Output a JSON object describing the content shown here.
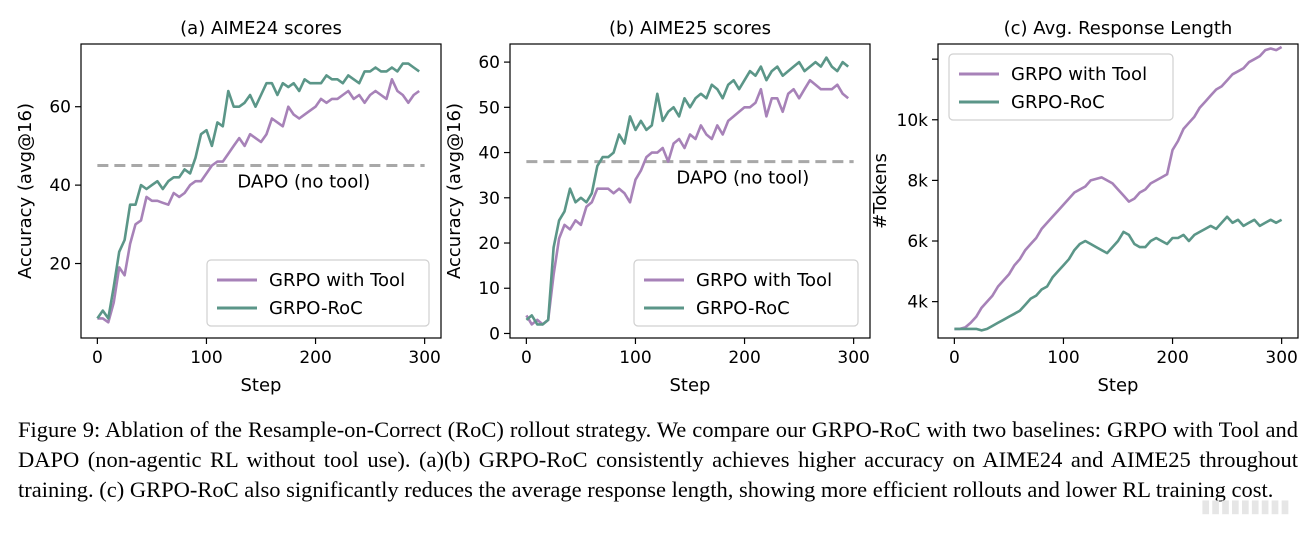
{
  "colors": {
    "tool": "#A782B8",
    "roc": "#5B9688",
    "ref": "#A8A8A8"
  },
  "caption": "Figure 9: Ablation of the Resample-on-Correct (RoC) rollout strategy. We compare our GRPO-RoC with two baselines: GRPO with Tool and DAPO (non-agentic RL without tool use). (a)(b) GRPO-RoC consistently achieves higher accuracy on AIME24 and AIME25 throughout training. (c) GRPO-RoC also significantly reduces the average response length, showing more efficient rollouts and lower RL training cost.",
  "chart_data": [
    {
      "type": "line",
      "title": "(a) AIME24 scores",
      "xlabel": "Step",
      "ylabel": "Accuracy (avg@16)",
      "xlim": [
        -15,
        315
      ],
      "ylim": [
        1,
        76
      ],
      "xticks": [
        0,
        100,
        200,
        300
      ],
      "yticks": [
        20,
        40,
        60
      ],
      "ytick_labels": [
        "20",
        "40",
        "60"
      ],
      "legend_position": "lower right",
      "reference": {
        "label": "DAPO (no tool)",
        "y": 45
      },
      "series": [
        {
          "name": "GRPO with Tool",
          "color": "#A782B8",
          "x": [
            0,
            5,
            10,
            15,
            20,
            25,
            30,
            35,
            40,
            45,
            50,
            55,
            60,
            65,
            70,
            75,
            80,
            85,
            90,
            95,
            100,
            105,
            110,
            115,
            120,
            125,
            130,
            135,
            140,
            145,
            150,
            155,
            160,
            165,
            170,
            175,
            180,
            185,
            190,
            195,
            200,
            205,
            210,
            215,
            220,
            225,
            230,
            235,
            240,
            245,
            250,
            255,
            260,
            265,
            270,
            275,
            280,
            285,
            290,
            295
          ],
          "y": [
            6,
            6,
            5,
            10,
            19,
            17,
            25,
            30,
            31,
            37,
            36,
            36,
            35.5,
            35,
            38,
            37,
            38,
            40,
            41,
            41,
            43,
            45,
            46,
            46,
            48,
            50,
            52,
            50,
            53,
            52,
            51,
            53,
            57,
            56,
            55,
            60,
            58,
            57,
            58,
            59,
            60,
            62,
            61,
            62,
            62,
            63,
            64,
            62,
            63,
            61,
            63,
            64,
            63,
            62,
            67,
            64,
            63,
            61,
            63,
            64
          ]
        },
        {
          "name": "GRPO-RoC",
          "color": "#5B9688",
          "x": [
            0,
            5,
            10,
            15,
            20,
            25,
            30,
            35,
            40,
            45,
            50,
            55,
            60,
            65,
            70,
            75,
            80,
            85,
            90,
            95,
            100,
            105,
            110,
            115,
            120,
            125,
            130,
            135,
            140,
            145,
            150,
            155,
            160,
            165,
            170,
            175,
            180,
            185,
            190,
            195,
            200,
            205,
            210,
            215,
            220,
            225,
            230,
            235,
            240,
            245,
            250,
            255,
            260,
            265,
            270,
            275,
            280,
            285,
            290,
            295
          ],
          "y": [
            6,
            8,
            6,
            14,
            23,
            26,
            35,
            35,
            40,
            39,
            40,
            41,
            39,
            41,
            42,
            42,
            44,
            43,
            47,
            53,
            54,
            50,
            56,
            55,
            64,
            60,
            60,
            61,
            63,
            60,
            63,
            66,
            66,
            63,
            66,
            65,
            66,
            64,
            67,
            66,
            66,
            66,
            68,
            67,
            67,
            66,
            68,
            67,
            66,
            69,
            69,
            70,
            69,
            69,
            70,
            69,
            71,
            71,
            70,
            69
          ]
        }
      ]
    },
    {
      "type": "line",
      "title": "(b) AIME25 scores",
      "xlabel": "Step",
      "ylabel": "Accuracy (avg@16)",
      "xlim": [
        -15,
        315
      ],
      "ylim": [
        -1,
        64
      ],
      "xticks": [
        0,
        100,
        200,
        300
      ],
      "yticks": [
        0,
        10,
        20,
        30,
        40,
        50,
        60
      ],
      "ytick_labels": [
        "0",
        "10",
        "20",
        "30",
        "40",
        "50",
        "60"
      ],
      "legend_position": "lower right",
      "reference": {
        "label": "DAPO (no tool)",
        "y": 38
      },
      "series": [
        {
          "name": "GRPO with Tool",
          "color": "#A782B8",
          "x": [
            0,
            5,
            10,
            15,
            20,
            25,
            30,
            35,
            40,
            45,
            50,
            55,
            60,
            65,
            70,
            75,
            80,
            85,
            90,
            95,
            100,
            105,
            110,
            115,
            120,
            125,
            130,
            135,
            140,
            145,
            150,
            155,
            160,
            165,
            170,
            175,
            180,
            185,
            190,
            195,
            200,
            205,
            210,
            215,
            220,
            225,
            230,
            235,
            240,
            245,
            250,
            255,
            260,
            265,
            270,
            275,
            280,
            285,
            290,
            295
          ],
          "y": [
            4,
            2,
            3,
            2,
            3,
            13,
            21,
            24,
            23,
            25,
            24,
            28,
            29,
            32,
            32,
            32,
            31,
            32,
            31,
            29,
            34,
            36,
            39,
            40,
            40,
            41,
            38,
            42,
            43,
            41,
            44,
            43,
            46,
            44,
            43,
            46,
            44,
            47,
            48,
            49,
            50,
            50,
            51,
            54,
            48,
            52,
            52,
            49,
            53,
            54,
            52,
            54,
            56,
            55,
            54,
            54,
            54,
            55,
            53,
            52
          ]
        },
        {
          "name": "GRPO-RoC",
          "color": "#5B9688",
          "x": [
            0,
            5,
            10,
            15,
            20,
            25,
            30,
            35,
            40,
            45,
            50,
            55,
            60,
            65,
            70,
            75,
            80,
            85,
            90,
            95,
            100,
            105,
            110,
            115,
            120,
            125,
            130,
            135,
            140,
            145,
            150,
            155,
            160,
            165,
            170,
            175,
            180,
            185,
            190,
            195,
            200,
            205,
            210,
            215,
            220,
            225,
            230,
            235,
            240,
            245,
            250,
            255,
            260,
            265,
            270,
            275,
            280,
            285,
            290,
            295
          ],
          "y": [
            3,
            4,
            2,
            2,
            3,
            19,
            25,
            27,
            32,
            29,
            30,
            29,
            31,
            37,
            39,
            39,
            40,
            44,
            42,
            48,
            45,
            47,
            45,
            46,
            53,
            47,
            49,
            50,
            48,
            52,
            50,
            52,
            53,
            52,
            55,
            54,
            52,
            55,
            56,
            54,
            56,
            58,
            57,
            59,
            56,
            58,
            59,
            57,
            58,
            59,
            60,
            58,
            59,
            60,
            59,
            61,
            59,
            58,
            60,
            59
          ]
        }
      ]
    },
    {
      "type": "line",
      "title": "(c) Avg. Response Length",
      "xlabel": "Step",
      "ylabel": "#Tokens",
      "xlim": [
        -15,
        315
      ],
      "ylim": [
        2800,
        12500
      ],
      "xticks": [
        0,
        100,
        200,
        300
      ],
      "yticks": [
        4000,
        6000,
        8000,
        10000,
        12000
      ],
      "ytick_labels": [
        "4k",
        "6k",
        "8k",
        "10k",
        ""
      ],
      "legend_position": "upper left",
      "series": [
        {
          "name": "GRPO with Tool",
          "color": "#A782B8",
          "x": [
            0,
            5,
            10,
            15,
            20,
            25,
            30,
            35,
            40,
            45,
            50,
            55,
            60,
            65,
            70,
            75,
            80,
            85,
            90,
            95,
            100,
            105,
            110,
            115,
            120,
            125,
            130,
            135,
            140,
            145,
            150,
            155,
            160,
            165,
            170,
            175,
            180,
            185,
            190,
            195,
            200,
            205,
            210,
            215,
            220,
            225,
            230,
            235,
            240,
            245,
            250,
            255,
            260,
            265,
            270,
            275,
            280,
            285,
            290,
            295,
            300
          ],
          "y": [
            3100,
            3100,
            3150,
            3300,
            3500,
            3800,
            4000,
            4200,
            4500,
            4700,
            4900,
            5200,
            5400,
            5700,
            5900,
            6100,
            6400,
            6600,
            6800,
            7000,
            7200,
            7400,
            7600,
            7700,
            7800,
            8000,
            8050,
            8100,
            8000,
            7900,
            7700,
            7500,
            7300,
            7400,
            7600,
            7700,
            7900,
            8000,
            8100,
            8200,
            9000,
            9300,
            9700,
            9900,
            10100,
            10400,
            10600,
            10800,
            11000,
            11100,
            11300,
            11500,
            11600,
            11700,
            11900,
            12000,
            12100,
            12300,
            12350,
            12300,
            12400
          ]
        },
        {
          "name": "GRPO-RoC",
          "color": "#5B9688",
          "x": [
            0,
            5,
            10,
            15,
            20,
            25,
            30,
            35,
            40,
            45,
            50,
            55,
            60,
            65,
            70,
            75,
            80,
            85,
            90,
            95,
            100,
            105,
            110,
            115,
            120,
            125,
            130,
            135,
            140,
            145,
            150,
            155,
            160,
            165,
            170,
            175,
            180,
            185,
            190,
            195,
            200,
            205,
            210,
            215,
            220,
            225,
            230,
            235,
            240,
            245,
            250,
            255,
            260,
            265,
            270,
            275,
            280,
            285,
            290,
            295,
            300
          ],
          "y": [
            3100,
            3100,
            3100,
            3100,
            3100,
            3050,
            3100,
            3200,
            3300,
            3400,
            3500,
            3600,
            3700,
            3900,
            4100,
            4200,
            4400,
            4500,
            4800,
            5000,
            5200,
            5400,
            5700,
            5900,
            6000,
            5900,
            5800,
            5700,
            5600,
            5800,
            6000,
            6300,
            6200,
            5900,
            5800,
            5800,
            6000,
            6100,
            6000,
            5900,
            6100,
            6100,
            6200,
            6000,
            6200,
            6300,
            6400,
            6500,
            6400,
            6600,
            6800,
            6600,
            6700,
            6500,
            6600,
            6700,
            6500,
            6600,
            6700,
            6600,
            6700
          ]
        }
      ]
    }
  ]
}
